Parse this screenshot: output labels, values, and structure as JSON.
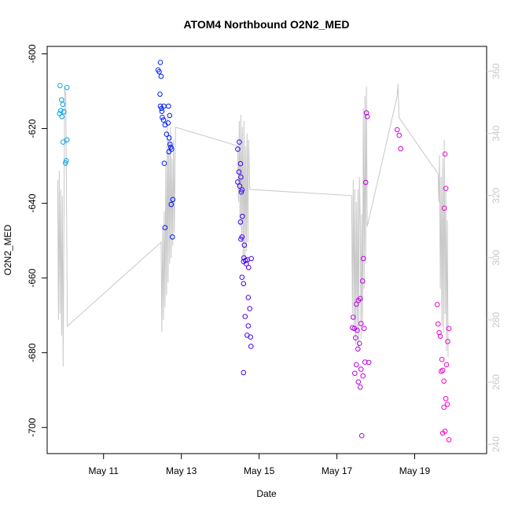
{
  "chart_data": {
    "type": "scatter",
    "title": "ATOM4 Northbound O2N2_MED",
    "xlabel": "Date",
    "ylabel": "O2N2_MED",
    "y2label": "",
    "xlim": [
      9.55,
      20.85
    ],
    "ylim": [
      -707,
      -598
    ],
    "y2lim": [
      237,
      368
    ],
    "x_ticks": [
      11,
      13,
      15,
      17,
      19
    ],
    "x_tick_labels": [
      "May 11",
      "May 13",
      "May 15",
      "May 17",
      "May 19"
    ],
    "y_ticks": [
      -700,
      -680,
      -660,
      -640,
      -620,
      -600
    ],
    "y2_ticks": [
      240,
      260,
      280,
      300,
      320,
      340,
      360
    ],
    "grid": false,
    "point_color_scale": [
      "#00aaee",
      "#0000ff",
      "#9900ee",
      "#ff00cc"
    ],
    "line_color": "#c8c8c8",
    "points": [
      [
        9.88,
        -608.5
      ],
      [
        9.92,
        -612.3
      ],
      [
        9.95,
        -613.5
      ],
      [
        9.9,
        -615.2
      ],
      [
        9.98,
        -615.5
      ],
      [
        9.87,
        -616.0
      ],
      [
        9.93,
        -616.8
      ],
      [
        10.06,
        -609.0
      ],
      [
        9.96,
        -623.6
      ],
      [
        10.06,
        -623.0
      ],
      [
        10.02,
        -629.2
      ],
      [
        10.04,
        -628.6
      ],
      [
        12.46,
        -602.3
      ],
      [
        12.4,
        -604.3
      ],
      [
        12.43,
        -604.8
      ],
      [
        12.48,
        -606.0
      ],
      [
        12.45,
        -610.8
      ],
      [
        12.46,
        -614.0
      ],
      [
        12.49,
        -614.6
      ],
      [
        12.5,
        -615.4
      ],
      [
        12.55,
        -614.0
      ],
      [
        12.51,
        -617.0
      ],
      [
        12.54,
        -617.7
      ],
      [
        12.58,
        -619.0
      ],
      [
        12.62,
        -621.5
      ],
      [
        12.67,
        -614.0
      ],
      [
        12.7,
        -616.5
      ],
      [
        12.66,
        -618.5
      ],
      [
        12.69,
        -622.5
      ],
      [
        12.71,
        -624.2
      ],
      [
        12.73,
        -625.0
      ],
      [
        12.75,
        -625.5
      ],
      [
        12.68,
        -626.2
      ],
      [
        12.56,
        -629.3
      ],
      [
        12.78,
        -639.0
      ],
      [
        12.74,
        -640.3
      ],
      [
        12.58,
        -646.5
      ],
      [
        12.77,
        -649.0
      ],
      [
        14.45,
        -625.5
      ],
      [
        14.49,
        -623.6
      ],
      [
        14.52,
        -629.4
      ],
      [
        14.48,
        -631.6
      ],
      [
        14.45,
        -634.3
      ],
      [
        14.53,
        -633.0
      ],
      [
        14.5,
        -635.4
      ],
      [
        14.56,
        -636.4
      ],
      [
        14.54,
        -637.0
      ],
      [
        14.52,
        -645.0
      ],
      [
        14.57,
        -643.5
      ],
      [
        14.56,
        -649.0
      ],
      [
        14.53,
        -649.6
      ],
      [
        14.62,
        -651.2
      ],
      [
        14.61,
        -654.6
      ],
      [
        14.65,
        -655.3
      ],
      [
        14.6,
        -655.6
      ],
      [
        14.67,
        -656.2
      ],
      [
        14.7,
        -655.1
      ],
      [
        14.73,
        -657.2
      ],
      [
        14.8,
        -654.8
      ],
      [
        14.56,
        -659.8
      ],
      [
        14.6,
        -661.5
      ],
      [
        14.72,
        -665.2
      ],
      [
        14.76,
        -668.2
      ],
      [
        14.64,
        -670.3
      ],
      [
        14.72,
        -672.8
      ],
      [
        14.78,
        -675.8
      ],
      [
        14.69,
        -675.3
      ],
      [
        14.79,
        -678.3
      ],
      [
        14.6,
        -685.3
      ],
      [
        17.4,
        -673.3
      ],
      [
        17.45,
        -673.5
      ],
      [
        17.5,
        -667.0
      ],
      [
        17.55,
        -666.0
      ],
      [
        17.6,
        -665.5
      ],
      [
        17.42,
        -670.5
      ],
      [
        17.52,
        -674.0
      ],
      [
        17.48,
        -676.0
      ],
      [
        17.58,
        -677.5
      ],
      [
        17.54,
        -679.0
      ],
      [
        17.62,
        -672.2
      ],
      [
        17.66,
        -660.8
      ],
      [
        17.68,
        -654.8
      ],
      [
        17.7,
        -673.5
      ],
      [
        17.74,
        -634.4
      ],
      [
        17.76,
        -615.8
      ],
      [
        17.78,
        -616.8
      ],
      [
        17.5,
        -683.2
      ],
      [
        17.46,
        -685.5
      ],
      [
        17.55,
        -687.8
      ],
      [
        17.62,
        -684.4
      ],
      [
        17.72,
        -682.5
      ],
      [
        17.67,
        -686.2
      ],
      [
        17.82,
        -682.6
      ],
      [
        17.6,
        -689.2
      ],
      [
        17.64,
        -702.2
      ],
      [
        18.55,
        -620.3
      ],
      [
        18.6,
        -621.8
      ],
      [
        18.64,
        -625.4
      ],
      [
        19.58,
        -667.1
      ],
      [
        19.6,
        -672.3
      ],
      [
        19.63,
        -674.6
      ],
      [
        19.66,
        -675.6
      ],
      [
        19.7,
        -681.8
      ],
      [
        19.68,
        -685.0
      ],
      [
        19.72,
        -684.7
      ],
      [
        19.75,
        -687.6
      ],
      [
        19.75,
        -694.6
      ],
      [
        19.76,
        -641.3
      ],
      [
        19.78,
        -626.8
      ],
      [
        19.8,
        -636.0
      ],
      [
        19.82,
        -683.2
      ],
      [
        19.85,
        -677.0
      ],
      [
        19.88,
        -673.5
      ],
      [
        19.8,
        -692.3
      ],
      [
        19.84,
        -693.8
      ],
      [
        19.78,
        -701.0
      ],
      [
        19.72,
        -701.5
      ],
      [
        19.88,
        -703.3
      ]
    ],
    "line_y2": [
      [
        9.82,
        325
      ],
      [
        9.84,
        280
      ],
      [
        9.86,
        328
      ],
      [
        9.88,
        282
      ],
      [
        9.9,
        322
      ],
      [
        9.92,
        275
      ],
      [
        9.94,
        320
      ],
      [
        9.96,
        265
      ],
      [
        10.0,
        355
      ],
      [
        10.03,
        352
      ],
      [
        10.07,
        278
      ],
      [
        12.48,
        305
      ],
      [
        12.5,
        276
      ],
      [
        12.52,
        310
      ],
      [
        12.54,
        280
      ],
      [
        12.56,
        315
      ],
      [
        12.58,
        284
      ],
      [
        12.6,
        330
      ],
      [
        12.62,
        288
      ],
      [
        12.64,
        345
      ],
      [
        12.66,
        292
      ],
      [
        12.68,
        338
      ],
      [
        12.7,
        298
      ],
      [
        12.72,
        342
      ],
      [
        12.74,
        300
      ],
      [
        12.76,
        332
      ],
      [
        12.78,
        304
      ],
      [
        12.8,
        338
      ],
      [
        12.82,
        308
      ],
      [
        12.85,
        342
      ],
      [
        14.45,
        336
      ],
      [
        14.47,
        318
      ],
      [
        14.49,
        344
      ],
      [
        14.51,
        310
      ],
      [
        14.53,
        346
      ],
      [
        14.55,
        305
      ],
      [
        14.57,
        342
      ],
      [
        14.59,
        300
      ],
      [
        14.61,
        344
      ],
      [
        14.63,
        298
      ],
      [
        14.65,
        336
      ],
      [
        14.67,
        302
      ],
      [
        14.69,
        340
      ],
      [
        14.71,
        305
      ],
      [
        14.73,
        338
      ],
      [
        14.76,
        322
      ],
      [
        17.38,
        320
      ],
      [
        17.4,
        282
      ],
      [
        17.42,
        325
      ],
      [
        17.44,
        278
      ],
      [
        17.46,
        322
      ],
      [
        17.48,
        272
      ],
      [
        17.5,
        318
      ],
      [
        17.52,
        276
      ],
      [
        17.54,
        322
      ],
      [
        17.56,
        270
      ],
      [
        17.58,
        326
      ],
      [
        17.6,
        312
      ],
      [
        17.62,
        274
      ],
      [
        17.64,
        314
      ],
      [
        17.66,
        278
      ],
      [
        17.68,
        348
      ],
      [
        17.7,
        290
      ],
      [
        17.72,
        352
      ],
      [
        17.74,
        298
      ],
      [
        17.76,
        355
      ],
      [
        17.78,
        310
      ],
      [
        18.55,
        352
      ],
      [
        18.57,
        356
      ],
      [
        18.6,
        345
      ],
      [
        19.6,
        327
      ],
      [
        19.62,
        318
      ],
      [
        19.64,
        333
      ],
      [
        19.66,
        290
      ],
      [
        19.68,
        326
      ],
      [
        19.7,
        278
      ],
      [
        19.72,
        332
      ],
      [
        19.74,
        276
      ],
      [
        19.76,
        338
      ],
      [
        19.78,
        282
      ],
      [
        19.8,
        322
      ],
      [
        19.82,
        270
      ],
      [
        19.84,
        312
      ],
      [
        19.86,
        268
      ]
    ]
  }
}
